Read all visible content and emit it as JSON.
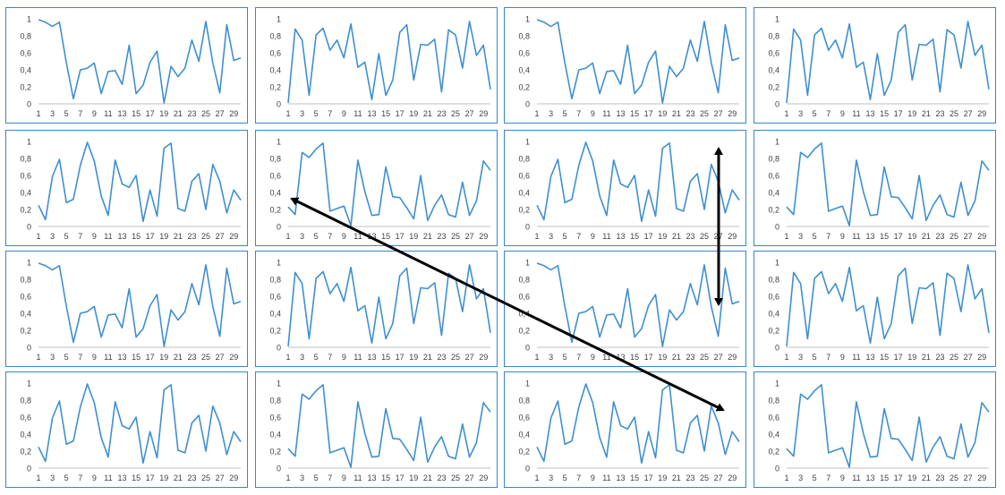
{
  "chart_data": {
    "type": "line",
    "layout": "4x4 grid of small-multiple line charts",
    "x_tick_labels": [
      "1",
      "3",
      "5",
      "7",
      "9",
      "11",
      "13",
      "15",
      "17",
      "19",
      "21",
      "23",
      "25",
      "27",
      "29"
    ],
    "y_tick_labels": [
      "0",
      "0,2",
      "0,4",
      "0,6",
      "0,8",
      "1"
    ],
    "x": [
      1,
      2,
      3,
      4,
      5,
      6,
      7,
      8,
      9,
      10,
      11,
      12,
      13,
      14,
      15,
      16,
      17,
      18,
      19,
      20,
      21,
      22,
      23,
      24,
      25,
      26,
      27,
      28,
      29,
      30
    ],
    "ylim": [
      0,
      1
    ],
    "xlim": [
      1,
      30
    ],
    "grid": false,
    "legend": "none",
    "line_color": "#3e8fd0",
    "patterns": {
      "A": [
        0.99,
        0.96,
        0.91,
        0.96,
        0.48,
        0.06,
        0.4,
        0.42,
        0.48,
        0.12,
        0.38,
        0.39,
        0.23,
        0.69,
        0.12,
        0.22,
        0.49,
        0.62,
        0.01,
        0.44,
        0.32,
        0.42,
        0.75,
        0.5,
        0.97,
        0.48,
        0.13,
        0.93,
        0.51,
        0.54
      ],
      "B": [
        0.01,
        0.88,
        0.75,
        0.1,
        0.81,
        0.89,
        0.63,
        0.75,
        0.54,
        0.94,
        0.43,
        0.49,
        0.05,
        0.59,
        0.1,
        0.28,
        0.84,
        0.93,
        0.28,
        0.7,
        0.69,
        0.76,
        0.14,
        0.87,
        0.81,
        0.42,
        0.97,
        0.57,
        0.69,
        0.17
      ],
      "C": [
        0.25,
        0.08,
        0.59,
        0.79,
        0.28,
        0.32,
        0.72,
        0.99,
        0.77,
        0.36,
        0.13,
        0.78,
        0.5,
        0.46,
        0.6,
        0.06,
        0.43,
        0.12,
        0.92,
        0.98,
        0.21,
        0.18,
        0.53,
        0.62,
        0.2,
        0.73,
        0.53,
        0.16,
        0.43,
        0.31
      ],
      "D": [
        0.23,
        0.14,
        0.87,
        0.81,
        0.91,
        0.98,
        0.18,
        0.21,
        0.24,
        0.01,
        0.78,
        0.41,
        0.13,
        0.14,
        0.7,
        0.35,
        0.34,
        0.22,
        0.09,
        0.6,
        0.07,
        0.25,
        0.37,
        0.14,
        0.11,
        0.52,
        0.13,
        0.3,
        0.77,
        0.66
      ]
    },
    "grid_layout": [
      [
        "A",
        "B",
        "A",
        "B"
      ],
      [
        "C",
        "D",
        "C",
        "D"
      ],
      [
        "A",
        "B",
        "A",
        "B"
      ],
      [
        "C",
        "D",
        "C",
        "D"
      ]
    ],
    "annotations": [
      {
        "type": "double-arrow",
        "description": "diagonal double-headed arrow from row 2 col 2 chart to row 4 col 3 chart",
        "color": "#000000"
      },
      {
        "type": "double-arrow",
        "description": "vertical double-headed arrow spanning row 2 col 3 chart down to row 3 col 3 chart",
        "color": "#000000"
      }
    ],
    "title": "",
    "xlabel": "",
    "ylabel": ""
  }
}
